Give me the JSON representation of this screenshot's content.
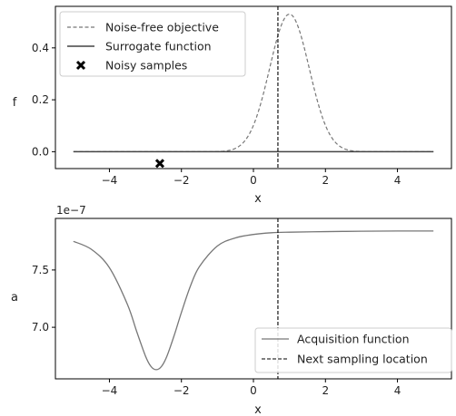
{
  "chart_data": [
    {
      "type": "line",
      "ylabel": "f",
      "xlabel": "x",
      "xlim": [
        -5.5,
        5.5
      ],
      "ylim": [
        -0.065,
        0.56
      ],
      "xticks": [
        -4,
        -2,
        0,
        2,
        4
      ],
      "xtick_labels": [
        "−4",
        "−2",
        "0",
        "2",
        "4"
      ],
      "yticks": [
        0.0,
        0.2,
        0.4
      ],
      "ytick_labels": [
        "0.0",
        "0.2",
        "0.4"
      ],
      "legend_position": "top-left",
      "legend": [
        {
          "label": "Noise-free objective",
          "style": "dashed-gray"
        },
        {
          "label": "Surrogate function",
          "style": "solid-dark"
        },
        {
          "label": "Noisy samples",
          "style": "x-marker"
        }
      ],
      "objective": {
        "type": "gaussian",
        "amplitude": 0.53,
        "center": 1.0,
        "sigma": 0.55,
        "x_range": [
          -5,
          5
        ],
        "color": "#777777"
      },
      "surrogate": {
        "x": [
          -5,
          5
        ],
        "y": [
          0.0,
          0.0
        ],
        "color": "#444444"
      },
      "samples": {
        "x": [
          -2.6
        ],
        "y": [
          -0.045
        ]
      },
      "vline": {
        "x": 0.68
      }
    },
    {
      "type": "line",
      "ylabel": "a",
      "xlabel": "x",
      "exponent_label": "1e−7",
      "xlim": [
        -5.5,
        5.5
      ],
      "ylim": [
        6.55,
        7.95
      ],
      "xticks": [
        -4,
        -2,
        0,
        2,
        4
      ],
      "xtick_labels": [
        "−4",
        "−2",
        "0",
        "2",
        "4"
      ],
      "yticks": [
        7.0,
        7.5
      ],
      "ytick_labels": [
        "7.0",
        "7.5"
      ],
      "legend_position": "bottom-right",
      "legend": [
        {
          "label": "Acquisition function",
          "style": "solid-gray"
        },
        {
          "label": "Next sampling location",
          "style": "dashed-black"
        }
      ],
      "acquisition": {
        "x": [
          -5.0,
          -4.5,
          -4.0,
          -3.5,
          -3.25,
          -3.0,
          -2.85,
          -2.7,
          -2.55,
          -2.4,
          -2.2,
          -2.0,
          -1.75,
          -1.5,
          -1.0,
          -0.5,
          0.0,
          0.5,
          1.0,
          2.0,
          3.0,
          4.0,
          5.0
        ],
        "y": [
          7.75,
          7.68,
          7.52,
          7.2,
          6.97,
          6.75,
          6.66,
          6.63,
          6.66,
          6.75,
          6.93,
          7.13,
          7.36,
          7.53,
          7.71,
          7.78,
          7.81,
          7.825,
          7.83,
          7.835,
          7.838,
          7.84,
          7.84
        ],
        "color": "#777777"
      },
      "vline": {
        "x": 0.68
      }
    }
  ]
}
